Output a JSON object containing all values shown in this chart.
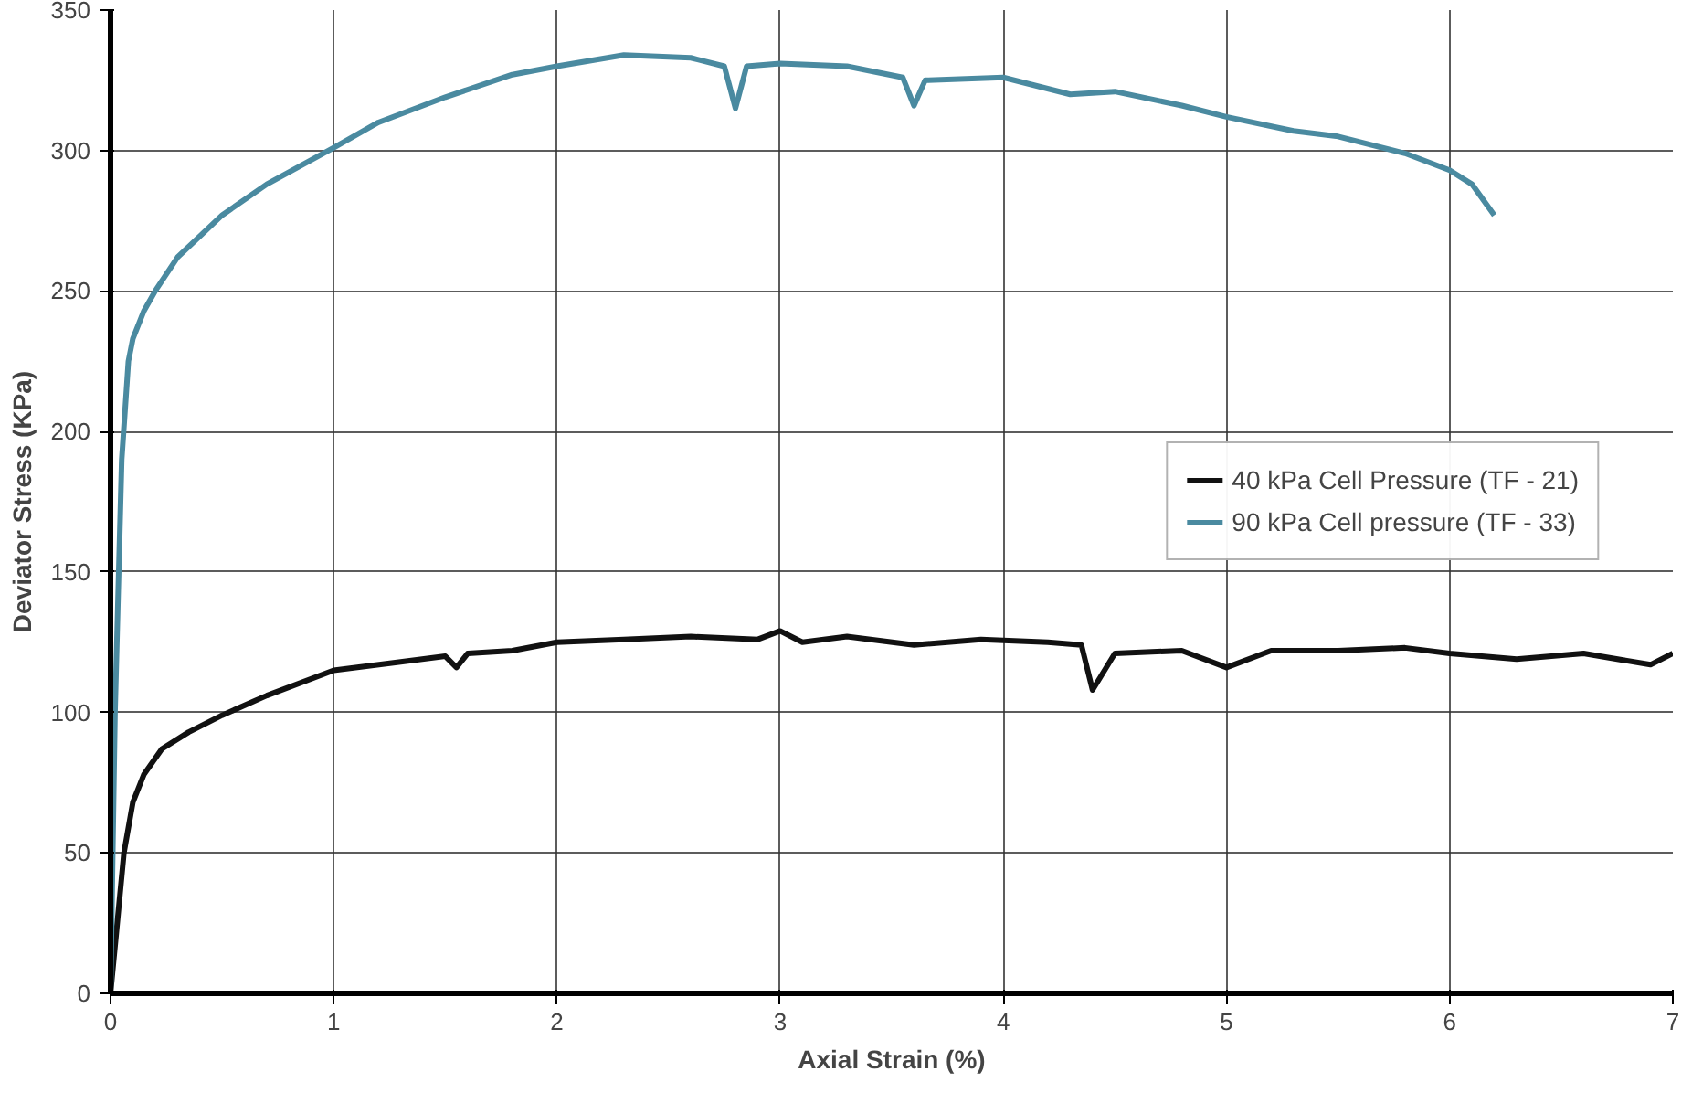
{
  "chart_data": {
    "type": "line",
    "xlabel": "Axial Strain (%)",
    "ylabel": "Deviator Stress (KPa)",
    "xlim": [
      0,
      7
    ],
    "ylim": [
      0,
      350
    ],
    "xticks": [
      0,
      1,
      2,
      3,
      4,
      5,
      6,
      7
    ],
    "yticks": [
      0,
      50,
      100,
      150,
      200,
      250,
      300,
      350
    ],
    "grid": true,
    "legend": "right",
    "line_style": "solid",
    "series": [
      {
        "name": "40 kPa Cell Pressure (TF - 21)",
        "color": "#111111",
        "x": [
          0,
          0.03,
          0.06,
          0.1,
          0.15,
          0.23,
          0.35,
          0.5,
          0.7,
          1,
          1.3,
          1.5,
          1.55,
          1.6,
          1.8,
          2,
          2.3,
          2.6,
          2.9,
          3,
          3.1,
          3.3,
          3.6,
          3.9,
          4.2,
          4.35,
          4.4,
          4.5,
          4.8,
          5,
          5.2,
          5.5,
          5.8,
          6,
          6.3,
          6.6,
          6.9,
          7
        ],
        "values": [
          0,
          25,
          50,
          68,
          78,
          87,
          93,
          99,
          106,
          115,
          118,
          120,
          116,
          121,
          122,
          125,
          126,
          127,
          126,
          129,
          125,
          127,
          124,
          126,
          125,
          124,
          108,
          121,
          122,
          116,
          122,
          122,
          123,
          121,
          119,
          121,
          117,
          121
        ]
      },
      {
        "name": "90 kPa Cell pressure (TF - 33)",
        "color": "#4a8aa0",
        "x": [
          0,
          0.02,
          0.05,
          0.08,
          0.1,
          0.15,
          0.2,
          0.3,
          0.5,
          0.7,
          1,
          1.2,
          1.5,
          1.8,
          2,
          2.3,
          2.6,
          2.75,
          2.8,
          2.85,
          3,
          3.3,
          3.55,
          3.6,
          3.65,
          4,
          4.3,
          4.5,
          4.8,
          5,
          5.3,
          5.5,
          5.8,
          6,
          6.1,
          6.2
        ],
        "values": [
          0,
          100,
          190,
          225,
          233,
          243,
          250,
          262,
          277,
          288,
          301,
          310,
          319,
          327,
          330,
          334,
          333,
          330,
          315,
          330,
          331,
          330,
          326,
          316,
          325,
          326,
          320,
          321,
          316,
          312,
          307,
          305,
          299,
          293,
          288,
          277
        ]
      }
    ]
  }
}
